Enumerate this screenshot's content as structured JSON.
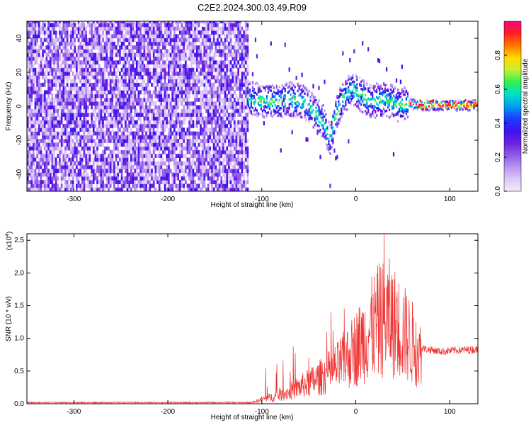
{
  "title": "C2E2.2024.300.03.49.R09",
  "colors": {
    "snr_line": "#ee3333",
    "colormap": [
      "#f4ecfc",
      "#dcc8f8",
      "#b894f0",
      "#8c5ae8",
      "#6a1ee0",
      "#3a14f0",
      "#1e3cff",
      "#00a0f0",
      "#00e0c8",
      "#30f050",
      "#c8f030",
      "#ffd800",
      "#ff7800",
      "#ff2020",
      "#ff0080"
    ]
  },
  "chart_data": [
    {
      "type": "heatmap",
      "xlabel": "Height of straight line (km)",
      "ylabel": "Frequency (Hz)",
      "xlim": [
        -350,
        130
      ],
      "ylim": [
        -50,
        50
      ],
      "xticks": [
        "-300",
        "-200",
        "-100",
        "0",
        "100"
      ],
      "xtick_values": [
        -300,
        -200,
        -100,
        0,
        100
      ],
      "yticks": [
        "-40",
        "-20",
        "0",
        "20",
        "40"
      ],
      "ytick_values": [
        -40,
        -20,
        0,
        20,
        40
      ],
      "colorbar": {
        "label": "Normalized spectral amplitude",
        "range": [
          0,
          1
        ],
        "ticks": [
          "0.0",
          "0.2",
          "0.4",
          "0.6",
          "0.8"
        ],
        "tick_values": [
          0,
          0.2,
          0.4,
          0.6,
          0.8
        ]
      },
      "noise_region_x": [
        -350,
        -115
      ],
      "signal_trace": [
        {
          "x": -115,
          "f": 4
        },
        {
          "x": -100,
          "f": 3
        },
        {
          "x": -85,
          "f": 2
        },
        {
          "x": -70,
          "f": 4
        },
        {
          "x": -55,
          "f": 2
        },
        {
          "x": -45,
          "f": -4
        },
        {
          "x": -35,
          "f": -10
        },
        {
          "x": -28,
          "f": -20
        },
        {
          "x": -22,
          "f": -6
        },
        {
          "x": -15,
          "f": 4
        },
        {
          "x": -5,
          "f": 10
        },
        {
          "x": 5,
          "f": 6
        },
        {
          "x": 15,
          "f": 2
        },
        {
          "x": 30,
          "f": 4
        },
        {
          "x": 45,
          "f": 0
        },
        {
          "x": 55,
          "f": 1
        },
        {
          "x": 70,
          "f": 0
        },
        {
          "x": 90,
          "f": 0
        },
        {
          "x": 110,
          "f": 0
        },
        {
          "x": 130,
          "f": 0
        }
      ]
    },
    {
      "type": "line",
      "xlabel": "Height of straight line (km)",
      "ylabel": "SNR (10 * v/v)",
      "y_multiplier": "(x10",
      "y_multiplier_exp": "4",
      "y_multiplier_close": ")",
      "xlim": [
        -350,
        130
      ],
      "ylim": [
        0,
        2.6
      ],
      "xticks": [
        "-300",
        "-200",
        "-100",
        "0",
        "100"
      ],
      "xtick_values": [
        -300,
        -200,
        -100,
        0,
        100
      ],
      "yticks": [
        "0.0",
        "0.5",
        "1.0",
        "1.5",
        "2.0",
        "2.5"
      ],
      "ytick_values": [
        0,
        0.5,
        1.0,
        1.5,
        2.0,
        2.5
      ],
      "series": [
        {
          "points": [
            {
              "x": -350,
              "y": 0.02
            },
            {
              "x": -110,
              "y": 0.02
            },
            {
              "x": -100,
              "y": 0.08
            },
            {
              "x": -80,
              "y": 0.15
            },
            {
              "x": -60,
              "y": 0.3
            },
            {
              "x": -40,
              "y": 0.45
            },
            {
              "x": -20,
              "y": 0.65
            },
            {
              "x": -5,
              "y": 0.9
            },
            {
              "x": 10,
              "y": 1.2
            },
            {
              "x": 25,
              "y": 1.5
            },
            {
              "x": 35,
              "y": 1.55
            },
            {
              "x": 50,
              "y": 1.3
            },
            {
              "x": 60,
              "y": 1.1
            },
            {
              "x": 70,
              "y": 0.85
            },
            {
              "x": 90,
              "y": 0.8
            },
            {
              "x": 110,
              "y": 0.82
            },
            {
              "x": 130,
              "y": 0.83
            }
          ],
          "peak": {
            "x": 30,
            "y": 2.6
          }
        }
      ]
    }
  ]
}
